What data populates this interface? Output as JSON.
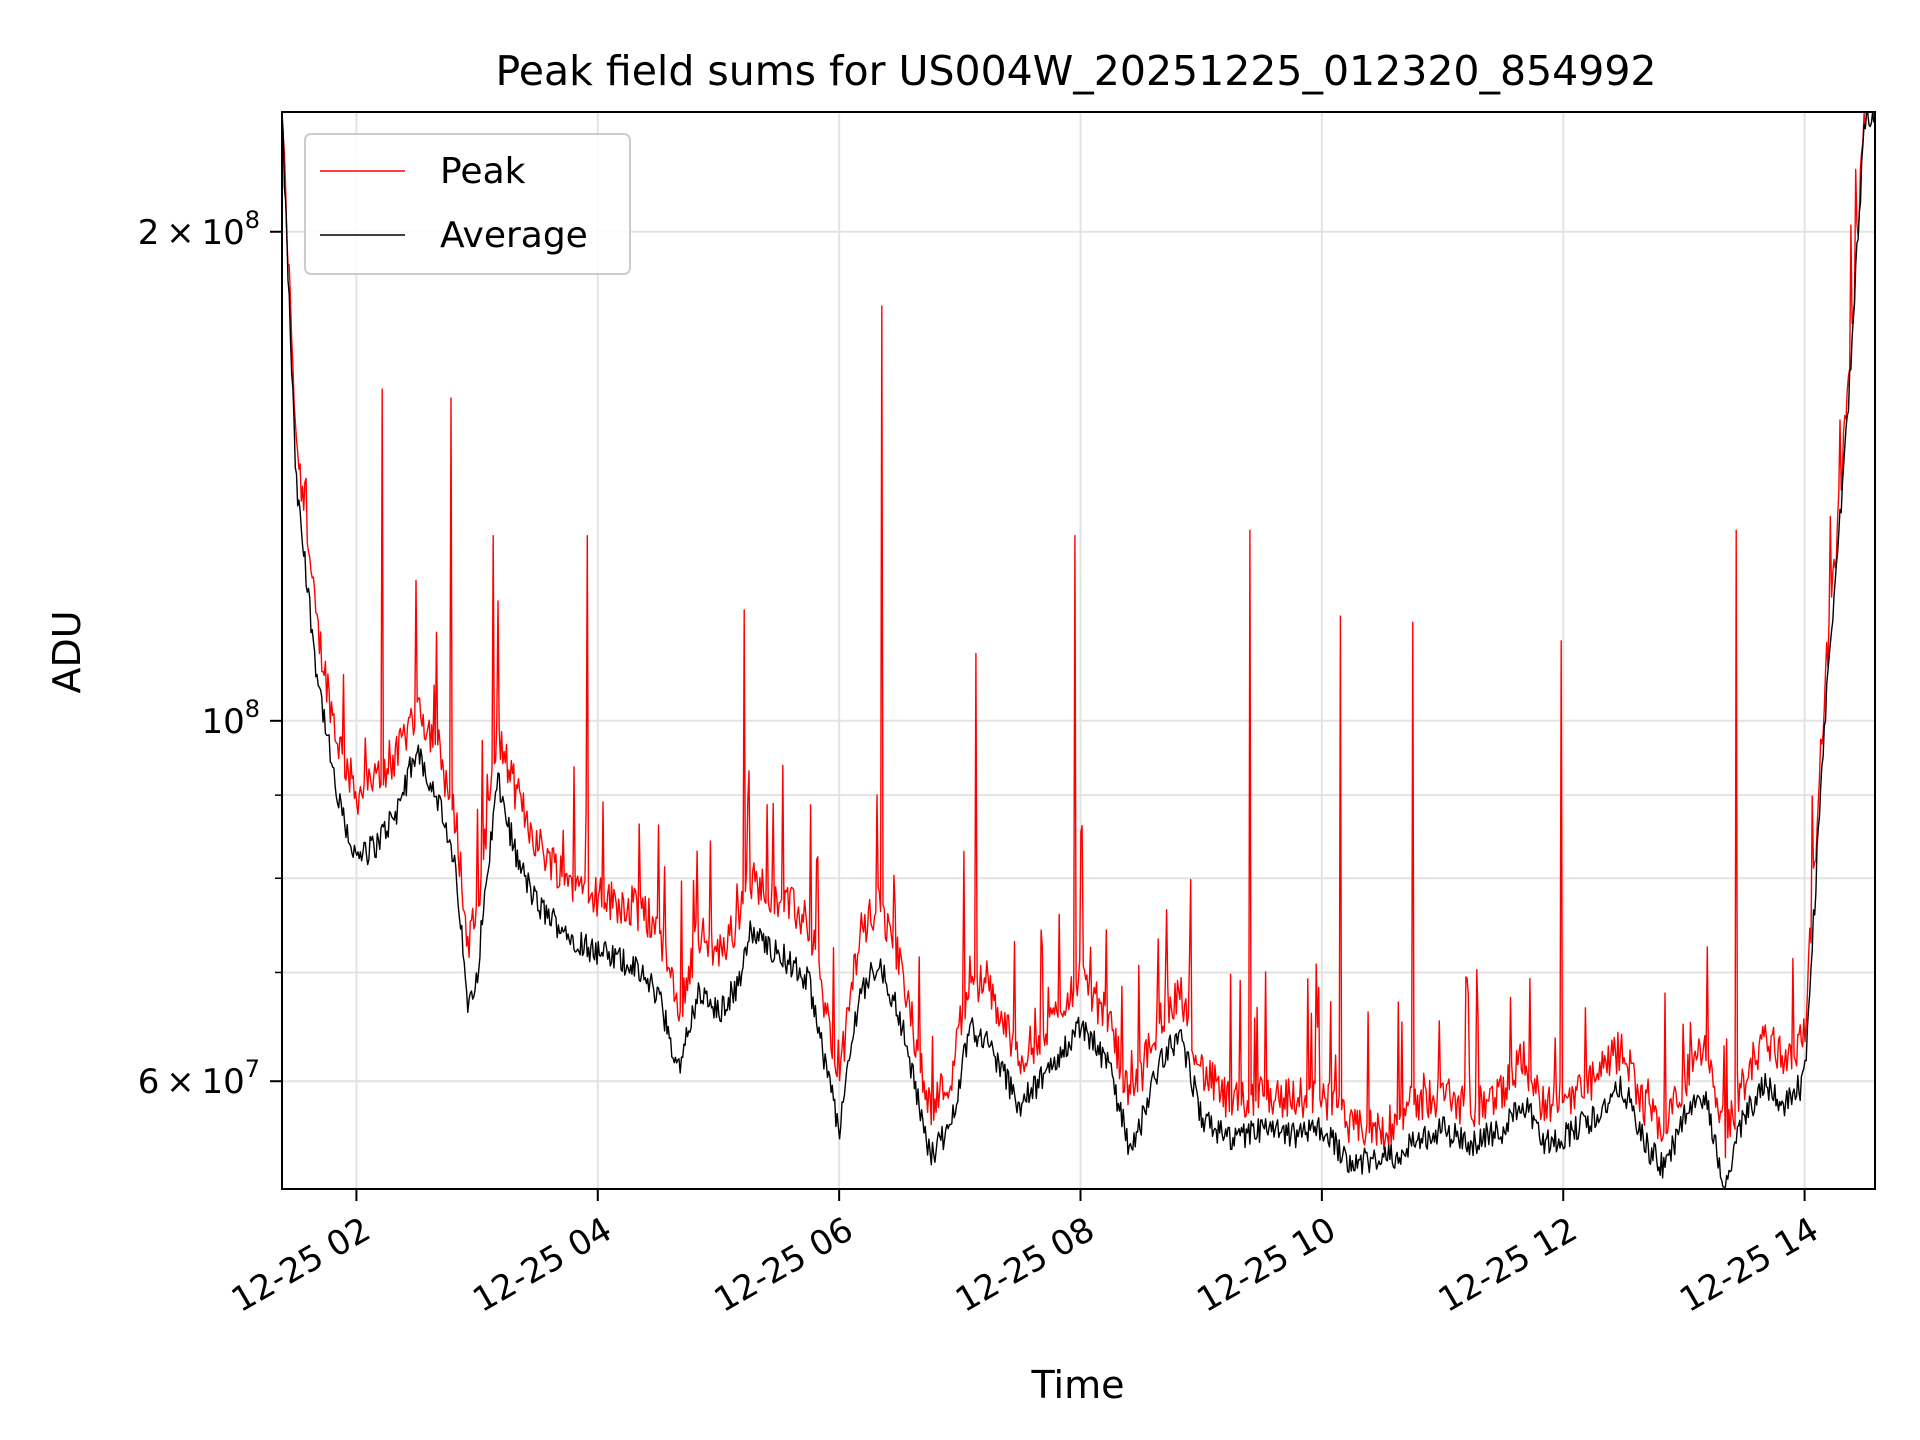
{
  "chart_data": {
    "type": "line",
    "title": "Peak field sums for US004W_20251225_012320_854992",
    "xlabel": "Time",
    "ylabel": "ADU",
    "yscale": "log",
    "grid": true,
    "legend_position": "upper left",
    "xlim": [
      "12-25 01:23",
      "12-25 14:35"
    ],
    "ylim": [
      51500000,
      237000000
    ],
    "x_ticks": [
      {
        "value": "12-25 02:00",
        "label": "12-25 02"
      },
      {
        "value": "12-25 04:00",
        "label": "12-25 04"
      },
      {
        "value": "12-25 06:00",
        "label": "12-25 06"
      },
      {
        "value": "12-25 08:00",
        "label": "12-25 08"
      },
      {
        "value": "12-25 10:00",
        "label": "12-25 10"
      },
      {
        "value": "12-25 12:00",
        "label": "12-25 12"
      },
      {
        "value": "12-25 14:00",
        "label": "12-25 14"
      }
    ],
    "y_major_ticks": [
      {
        "value": 60000000,
        "base": "6",
        "exp": "7"
      },
      {
        "value": 100000000,
        "base": "",
        "exp": "8"
      },
      {
        "value": 200000000,
        "base": "2",
        "exp": "8"
      }
    ],
    "y_minor_ticks": [
      70000000,
      80000000,
      90000000
    ],
    "series": [
      {
        "name": "Peak",
        "color": "#ff0000",
        "points": [
          [
            "12-25 01:23",
            236000000
          ],
          [
            "12-25 01:30",
            150000000
          ],
          [
            "12-25 01:40",
            115000000
          ],
          [
            "12-25 01:50",
            98000000
          ],
          [
            "12-25 02:00",
            90000000
          ],
          [
            "12-25 02:10",
            92000000
          ],
          [
            "12-25 02:20",
            95000000
          ],
          [
            "12-25 02:30",
            102000000
          ],
          [
            "12-25 02:40",
            97000000
          ],
          [
            "12-25 02:50",
            86000000
          ],
          [
            "12-25 02:55",
            73000000
          ],
          [
            "12-25 03:00",
            76000000
          ],
          [
            "12-25 03:10",
            98000000
          ],
          [
            "12-25 03:20",
            90000000
          ],
          [
            "12-25 03:30",
            84000000
          ],
          [
            "12-25 03:45",
            80000000
          ],
          [
            "12-25 04:00",
            78000000
          ],
          [
            "12-25 04:15",
            77000000
          ],
          [
            "12-25 04:30",
            75000000
          ],
          [
            "12-25 04:40",
            66000000
          ],
          [
            "12-25 04:50",
            74000000
          ],
          [
            "12-25 05:00",
            72000000
          ],
          [
            "12-25 05:10",
            75000000
          ],
          [
            "12-25 05:15",
            80000000
          ],
          [
            "12-25 05:30",
            78000000
          ],
          [
            "12-25 05:45",
            75000000
          ],
          [
            "12-25 06:00",
            60000000
          ],
          [
            "12-25 06:10",
            74000000
          ],
          [
            "12-25 06:20",
            77000000
          ],
          [
            "12-25 06:30",
            71000000
          ],
          [
            "12-25 06:45",
            58000000
          ],
          [
            "12-25 06:55",
            60000000
          ],
          [
            "12-25 07:05",
            70000000
          ],
          [
            "12-25 07:15",
            68000000
          ],
          [
            "12-25 07:30",
            62000000
          ],
          [
            "12-25 07:45",
            65000000
          ],
          [
            "12-25 08:00",
            70000000
          ],
          [
            "12-25 08:15",
            65000000
          ],
          [
            "12-25 08:25",
            58000000
          ],
          [
            "12-25 08:40",
            66000000
          ],
          [
            "12-25 08:50",
            68000000
          ],
          [
            "12-25 09:00",
            61000000
          ],
          [
            "12-25 09:15",
            58000000
          ],
          [
            "12-25 09:30",
            59000000
          ],
          [
            "12-25 09:45",
            58500000
          ],
          [
            "12-25 10:00",
            59000000
          ],
          [
            "12-25 10:15",
            56000000
          ],
          [
            "12-25 10:30",
            56000000
          ],
          [
            "12-25 10:45",
            58000000
          ],
          [
            "12-25 11:00",
            59000000
          ],
          [
            "12-25 11:15",
            57500000
          ],
          [
            "12-25 11:30",
            59000000
          ],
          [
            "12-25 11:40",
            62000000
          ],
          [
            "12-25 11:50",
            58000000
          ],
          [
            "12-25 12:00",
            58500000
          ],
          [
            "12-25 12:15",
            60000000
          ],
          [
            "12-25 12:30",
            63000000
          ],
          [
            "12-25 12:40",
            58000000
          ],
          [
            "12-25 12:50",
            56000000
          ],
          [
            "12-25 13:00",
            60000000
          ],
          [
            "12-25 13:10",
            63000000
          ],
          [
            "12-25 13:20",
            55000000
          ],
          [
            "12-25 13:30",
            60000000
          ],
          [
            "12-25 13:40",
            64000000
          ],
          [
            "12-25 13:50",
            62000000
          ],
          [
            "12-25 14:00",
            64000000
          ],
          [
            "12-25 14:10",
            105000000
          ],
          [
            "12-25 14:20",
            150000000
          ],
          [
            "12-25 14:30",
            236000000
          ]
        ],
        "spikes": [
          [
            "12-25 02:13",
            160000000
          ],
          [
            "12-25 02:47",
            158000000
          ],
          [
            "12-25 03:08",
            130000000
          ],
          [
            "12-25 03:55",
            130000000
          ],
          [
            "12-25 05:13",
            117000000
          ],
          [
            "12-25 06:21",
            180000000
          ],
          [
            "12-25 07:08",
            110000000
          ],
          [
            "12-25 07:57",
            130000000
          ],
          [
            "12-25 09:24",
            131000000
          ],
          [
            "12-25 10:09",
            116000000
          ],
          [
            "12-25 10:45",
            115000000
          ],
          [
            "12-25 11:59",
            112000000
          ],
          [
            "12-25 13:26",
            131000000
          ]
        ]
      },
      {
        "name": "Average",
        "color": "#000000",
        "points": [
          [
            "12-25 01:23",
            236000000
          ],
          [
            "12-25 01:30",
            140000000
          ],
          [
            "12-25 01:40",
            108000000
          ],
          [
            "12-25 01:50",
            90000000
          ],
          [
            "12-25 02:00",
            82000000
          ],
          [
            "12-25 02:10",
            84000000
          ],
          [
            "12-25 02:20",
            88000000
          ],
          [
            "12-25 02:30",
            96000000
          ],
          [
            "12-25 02:40",
            90000000
          ],
          [
            "12-25 02:50",
            80000000
          ],
          [
            "12-25 02:55",
            67000000
          ],
          [
            "12-25 03:00",
            70000000
          ],
          [
            "12-25 03:10",
            92000000
          ],
          [
            "12-25 03:20",
            82000000
          ],
          [
            "12-25 03:30",
            77000000
          ],
          [
            "12-25 03:45",
            74000000
          ],
          [
            "12-25 04:00",
            72000000
          ],
          [
            "12-25 04:15",
            71000000
          ],
          [
            "12-25 04:30",
            68000000
          ],
          [
            "12-25 04:40",
            61000000
          ],
          [
            "12-25 04:50",
            68000000
          ],
          [
            "12-25 05:00",
            66000000
          ],
          [
            "12-25 05:10",
            69000000
          ],
          [
            "12-25 05:15",
            74000000
          ],
          [
            "12-25 05:30",
            72000000
          ],
          [
            "12-25 05:45",
            69000000
          ],
          [
            "12-25 06:00",
            56000000
          ],
          [
            "12-25 06:10",
            68000000
          ],
          [
            "12-25 06:20",
            71000000
          ],
          [
            "12-25 06:30",
            66000000
          ],
          [
            "12-25 06:45",
            54000000
          ],
          [
            "12-25 06:55",
            56000000
          ],
          [
            "12-25 07:05",
            65000000
          ],
          [
            "12-25 07:15",
            63000000
          ],
          [
            "12-25 07:30",
            58000000
          ],
          [
            "12-25 07:45",
            61000000
          ],
          [
            "12-25 08:00",
            65000000
          ],
          [
            "12-25 08:15",
            61000000
          ],
          [
            "12-25 08:25",
            54000000
          ],
          [
            "12-25 08:40",
            62000000
          ],
          [
            "12-25 08:50",
            64000000
          ],
          [
            "12-25 09:00",
            57000000
          ],
          [
            "12-25 09:15",
            55000000
          ],
          [
            "12-25 09:30",
            56000000
          ],
          [
            "12-25 09:45",
            55500000
          ],
          [
            "12-25 10:00",
            56000000
          ],
          [
            "12-25 10:15",
            53500000
          ],
          [
            "12-25 10:30",
            53500000
          ],
          [
            "12-25 10:45",
            55000000
          ],
          [
            "12-25 11:00",
            56000000
          ],
          [
            "12-25 11:15",
            55000000
          ],
          [
            "12-25 11:30",
            56000000
          ],
          [
            "12-25 11:40",
            58500000
          ],
          [
            "12-25 11:50",
            55000000
          ],
          [
            "12-25 12:00",
            55500000
          ],
          [
            "12-25 12:15",
            57000000
          ],
          [
            "12-25 12:30",
            59500000
          ],
          [
            "12-25 12:40",
            55000000
          ],
          [
            "12-25 12:50",
            53000000
          ],
          [
            "12-25 13:00",
            57000000
          ],
          [
            "12-25 13:10",
            59000000
          ],
          [
            "12-25 13:20",
            52000000
          ],
          [
            "12-25 13:30",
            57000000
          ],
          [
            "12-25 13:40",
            60000000
          ],
          [
            "12-25 13:50",
            58000000
          ],
          [
            "12-25 14:00",
            60000000
          ],
          [
            "12-25 14:10",
            100000000
          ],
          [
            "12-25 14:20",
            145000000
          ],
          [
            "12-25 14:30",
            236000000
          ]
        ]
      }
    ]
  }
}
